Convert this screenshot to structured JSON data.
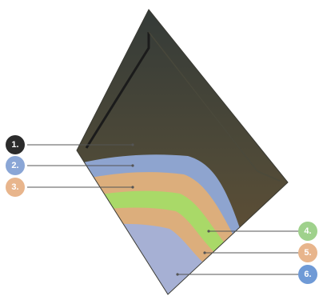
{
  "layers": [
    {
      "label": "1.",
      "badge_color": "#2b2b2b",
      "fill": "#5e4e34"
    },
    {
      "label": "2.",
      "badge_color": "#8aa6d6",
      "fill": "#8ea4cf"
    },
    {
      "label": "3.",
      "badge_color": "#e8b58c",
      "fill": "#dcae7c"
    },
    {
      "label": "4.",
      "badge_color": "#9fd18c",
      "fill": "#a9d968"
    },
    {
      "label": "5.",
      "badge_color": "#e8b58c",
      "fill": "#dcae7c"
    },
    {
      "label": "6.",
      "badge_color": "#6f9ad6",
      "fill": "#a6b0d4"
    }
  ]
}
